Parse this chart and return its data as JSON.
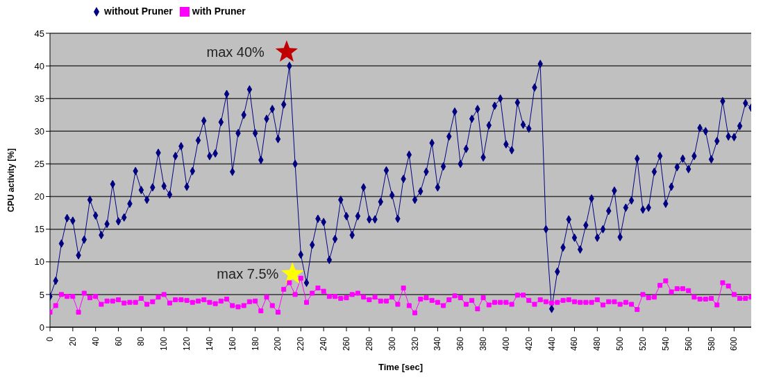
{
  "chart_data": {
    "type": "line",
    "xlabel": "Time [sec]",
    "ylabel": "CPU activity [%]",
    "x": [
      0,
      5,
      10,
      15,
      20,
      25,
      30,
      35,
      40,
      45,
      50,
      55,
      60,
      65,
      70,
      75,
      80,
      85,
      90,
      95,
      100,
      105,
      110,
      115,
      120,
      125,
      130,
      135,
      140,
      145,
      150,
      155,
      160,
      165,
      170,
      175,
      180,
      185,
      190,
      195,
      200,
      205,
      210,
      215,
      220,
      225,
      230,
      235,
      240,
      245,
      250,
      255,
      260,
      265,
      270,
      275,
      280,
      285,
      290,
      295,
      300,
      305,
      310,
      315,
      320,
      325,
      330,
      335,
      340,
      345,
      350,
      355,
      360,
      365,
      370,
      375,
      380,
      385,
      390,
      395,
      400,
      405,
      410,
      415,
      420,
      425,
      430,
      435,
      440,
      445,
      450,
      455,
      460,
      465,
      470,
      475,
      480,
      485,
      490,
      495,
      500,
      505,
      510,
      515,
      520,
      525,
      530,
      535,
      540,
      545,
      550,
      555,
      560,
      565,
      570,
      575,
      580,
      585,
      590,
      595,
      600,
      605,
      610,
      615
    ],
    "series": [
      {
        "name": "without Pruner",
        "color": "#000080",
        "marker": "diamond",
        "values": [
          4.7,
          7.1,
          12.8,
          16.7,
          16.3,
          11.0,
          13.4,
          19.5,
          17.1,
          14.1,
          15.8,
          21.9,
          16.2,
          16.8,
          18.9,
          23.9,
          21.0,
          19.5,
          21.4,
          26.7,
          21.6,
          20.3,
          26.2,
          27.7,
          21.5,
          23.9,
          28.6,
          31.6,
          26.2,
          26.6,
          31.4,
          35.7,
          23.8,
          29.7,
          32.5,
          36.4,
          29.7,
          25.6,
          31.9,
          33.4,
          28.8,
          34.1,
          40.0,
          25.0,
          11.1,
          6.8,
          12.6,
          16.6,
          16.1,
          10.3,
          13.5,
          19.5,
          17.0,
          14.1,
          17.0,
          21.4,
          16.5,
          16.5,
          19.2,
          24.0,
          20.2,
          16.6,
          22.7,
          26.4,
          19.5,
          20.8,
          23.8,
          28.2,
          21.4,
          24.6,
          29.2,
          33.0,
          25.0,
          27.3,
          31.9,
          33.4,
          26.0,
          30.9,
          33.9,
          35.0,
          28.0,
          27.1,
          34.4,
          31.0,
          30.4,
          36.7,
          40.3,
          15.0,
          2.8,
          8.5,
          12.2,
          16.5,
          13.7,
          11.9,
          15.6,
          19.7,
          13.7,
          15.0,
          17.8,
          20.9,
          13.8,
          18.3,
          19.4,
          25.8,
          18.0,
          18.3,
          23.8,
          26.2,
          18.9,
          21.5,
          24.5,
          25.8,
          24.2,
          26.2,
          30.5,
          30.0,
          25.7,
          28.5,
          34.6,
          29.2,
          29.1,
          30.8,
          34.3,
          33.6
        ]
      },
      {
        "name": "with Pruner",
        "color": "#ff00ff",
        "marker": "square",
        "values": [
          2.3,
          3.3,
          5.0,
          4.7,
          4.7,
          2.3,
          5.2,
          4.5,
          4.7,
          3.5,
          4.0,
          4.0,
          4.2,
          3.7,
          3.8,
          3.8,
          4.4,
          3.5,
          3.9,
          4.6,
          5.0,
          3.7,
          4.2,
          4.2,
          4.1,
          3.8,
          4.0,
          4.2,
          3.8,
          3.6,
          4.0,
          4.3,
          3.3,
          3.1,
          3.3,
          3.9,
          4.0,
          2.5,
          4.6,
          3.3,
          2.3,
          5.8,
          6.8,
          5.0,
          7.5,
          3.8,
          5.2,
          6.0,
          5.5,
          4.7,
          4.7,
          4.4,
          4.5,
          5.0,
          5.2,
          4.6,
          4.2,
          4.6,
          4.0,
          4.0,
          4.6,
          3.5,
          6.0,
          3.3,
          2.2,
          4.3,
          4.5,
          4.1,
          3.8,
          3.3,
          4.2,
          4.8,
          4.5,
          3.5,
          4.1,
          2.8,
          4.5,
          3.4,
          3.8,
          3.8,
          3.8,
          3.5,
          4.9,
          4.9,
          4.1,
          3.5,
          4.2,
          3.9,
          3.7,
          3.8,
          4.1,
          4.2,
          3.9,
          3.8,
          3.8,
          3.8,
          4.2,
          3.4,
          3.9,
          3.9,
          3.5,
          3.8,
          3.5,
          2.7,
          5.0,
          4.5,
          4.6,
          6.4,
          7.1,
          5.4,
          5.9,
          5.9,
          5.6,
          4.6,
          4.3,
          4.3,
          4.4,
          3.4,
          6.8,
          6.3,
          5.0,
          4.4,
          4.4,
          4.6
        ]
      }
    ],
    "xlim": [
      0,
      615
    ],
    "xticks": [
      0,
      20,
      40,
      60,
      80,
      100,
      120,
      140,
      160,
      180,
      200,
      220,
      240,
      260,
      280,
      300,
      320,
      340,
      360,
      380,
      400,
      420,
      440,
      460,
      480,
      500,
      520,
      540,
      560,
      580,
      600
    ],
    "ylim": [
      0,
      45
    ],
    "yticks": [
      0,
      5,
      10,
      15,
      20,
      25,
      30,
      35,
      40,
      45
    ],
    "grid": "y",
    "legend": "top left",
    "line_style": "solid",
    "annotations": [
      {
        "text": "max 40%",
        "x": 210,
        "y": 40
      },
      {
        "text": "max 7.5%",
        "x": 220,
        "y": 7.5
      }
    ]
  }
}
